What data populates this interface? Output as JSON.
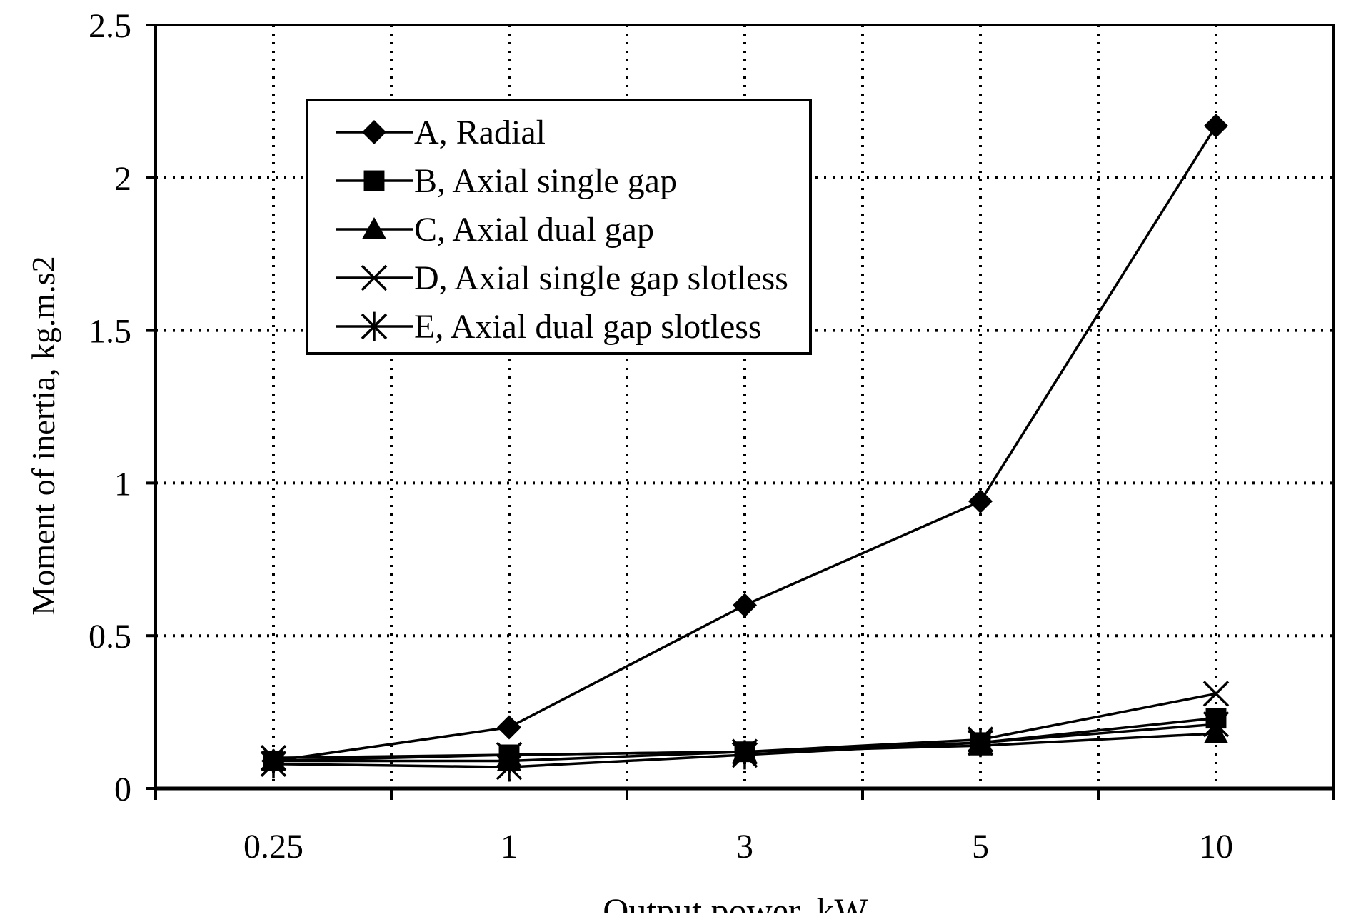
{
  "chart_data": {
    "type": "line",
    "xlabel": "Output power, kW",
    "ylabel": "Moment of inertia, kg.m.s2",
    "categories": [
      "0.25",
      "1",
      "3",
      "5",
      "10"
    ],
    "yticks": [
      "0",
      "0.5",
      "1",
      "1.5",
      "2",
      "2.5"
    ],
    "ylim": [
      0,
      2.5
    ],
    "grid": true,
    "legend_position": "top-left",
    "series": [
      {
        "name": "A, Radial",
        "marker": "diamond",
        "values": [
          0.09,
          0.2,
          0.6,
          0.94,
          2.17
        ]
      },
      {
        "name": "B, Axial single gap",
        "marker": "square",
        "values": [
          0.09,
          0.11,
          0.12,
          0.15,
          0.23
        ]
      },
      {
        "name": "C, Axial dual gap",
        "marker": "triangle",
        "values": [
          0.09,
          0.09,
          0.12,
          0.14,
          0.18
        ]
      },
      {
        "name": "D, Axial single gap slotless",
        "marker": "x",
        "values": [
          0.1,
          0.11,
          0.12,
          0.16,
          0.31
        ]
      },
      {
        "name": "E, Axial dual gap slotless",
        "marker": "asterisk",
        "values": [
          0.08,
          0.07,
          0.11,
          0.15,
          0.21
        ]
      }
    ]
  }
}
